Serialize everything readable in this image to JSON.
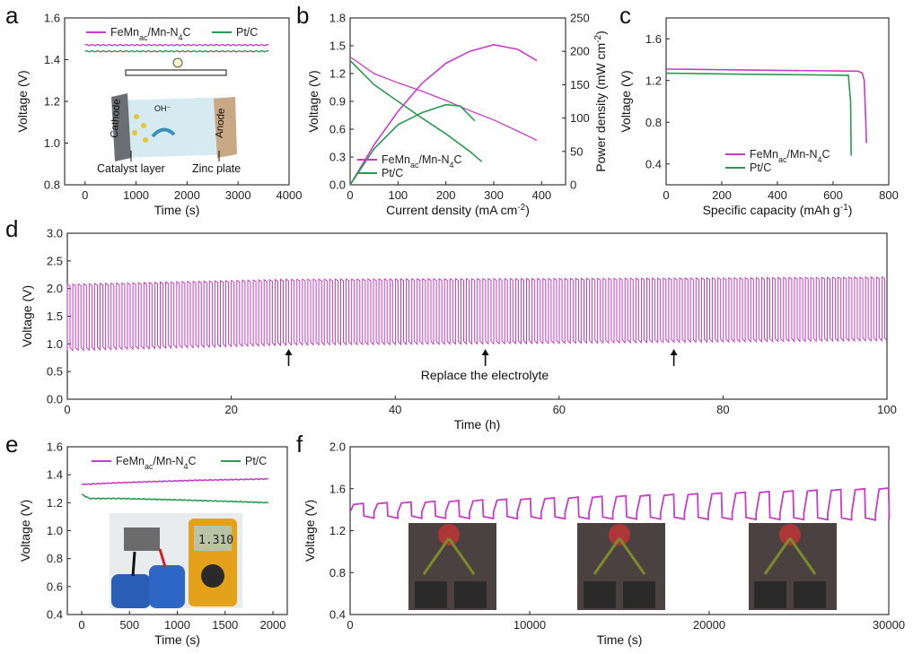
{
  "colors": {
    "fe": "#c83cc8",
    "pt": "#2a9a52",
    "axis": "#222222"
  },
  "panel_letters": [
    "a",
    "b",
    "c",
    "d",
    "e",
    "f"
  ],
  "chart_data": [
    {
      "id": "a",
      "type": "line",
      "title": "",
      "xlabel": "Time (s)",
      "ylabel": "Voltage (V)",
      "xlim": [
        -400,
        4000
      ],
      "ylim": [
        0.8,
        1.6
      ],
      "xticks": [
        0,
        1000,
        2000,
        3000,
        4000
      ],
      "yticks": [
        0.8,
        1.0,
        1.2,
        1.4,
        1.6
      ],
      "legend": [
        "FeMn",
        "ac",
        "/Mn-N",
        "4",
        "C",
        "Pt/C"
      ],
      "series": [
        {
          "name": "FeMnac/Mn-N4C",
          "x": [
            0,
            3600
          ],
          "y": [
            1.47,
            1.47
          ]
        },
        {
          "name": "Pt/C",
          "x": [
            0,
            3600
          ],
          "y": [
            1.44,
            1.44
          ]
        }
      ],
      "inset_labels": [
        "Catalyst layer",
        "Zinc plate",
        "Cathode",
        "Anode",
        "OH⁻"
      ]
    },
    {
      "id": "b",
      "type": "line",
      "xlabel": "Current density (mA cm",
      "xlabel_sup": "-2",
      "xlabel_end": ")",
      "ylabel": "Voltage (V)",
      "y2label": "Power density (mW cm",
      "y2label_sup": "-2",
      "y2label_end": ")",
      "xlim": [
        0,
        450
      ],
      "ylim": [
        0,
        1.8
      ],
      "y2lim": [
        0,
        250
      ],
      "xticks": [
        0,
        100,
        200,
        300,
        400
      ],
      "yticks": [
        0.0,
        0.3,
        0.6,
        0.9,
        1.2,
        1.5,
        1.8
      ],
      "y2ticks": [
        0,
        50,
        100,
        150,
        200,
        250
      ],
      "legend": [
        "FeMn",
        "ac",
        "/Mn-N",
        "4",
        "C",
        "Pt/C"
      ],
      "series": [
        {
          "name": "FeMnac/Mn-N4C voltage",
          "x": [
            0,
            50,
            100,
            150,
            200,
            250,
            300,
            350,
            390
          ],
          "y": [
            1.38,
            1.2,
            1.1,
            1.01,
            0.91,
            0.8,
            0.7,
            0.58,
            0.48
          ]
        },
        {
          "name": "Pt/C voltage",
          "x": [
            0,
            50,
            100,
            150,
            200,
            250,
            275
          ],
          "y": [
            1.34,
            1.08,
            0.9,
            0.72,
            0.55,
            0.36,
            0.25
          ]
        },
        {
          "name": "FeMnac/Mn-N4C power",
          "x": [
            0,
            50,
            100,
            150,
            200,
            250,
            300,
            350,
            390
          ],
          "y": [
            0,
            60,
            110,
            152,
            182,
            200,
            210,
            203,
            186
          ]
        },
        {
          "name": "Pt/C power",
          "x": [
            0,
            50,
            100,
            150,
            200,
            230,
            260
          ],
          "y": [
            0,
            54,
            90,
            108,
            120,
            118,
            96
          ]
        }
      ]
    },
    {
      "id": "c",
      "type": "line",
      "xlabel": "Specific capacity (mAh g",
      "xlabel_sup": "-1",
      "xlabel_end": ")",
      "ylabel": "Voltage (V)",
      "xlim": [
        0,
        800
      ],
      "ylim": [
        0.2,
        1.8
      ],
      "xticks": [
        0,
        200,
        400,
        600,
        800
      ],
      "yticks": [
        0.4,
        0.8,
        1.2,
        1.6
      ],
      "legend": [
        "FeMn",
        "ac",
        "/Mn-N",
        "4",
        "C",
        "Pt/C"
      ],
      "series": [
        {
          "name": "FeMnac/Mn-N4C",
          "x": [
            0,
            300,
            690,
            705,
            712,
            716,
            720
          ],
          "y": [
            1.31,
            1.3,
            1.29,
            1.27,
            1.2,
            0.9,
            0.6
          ]
        },
        {
          "name": "Pt/C",
          "x": [
            0,
            300,
            655,
            663,
            665
          ],
          "y": [
            1.27,
            1.26,
            1.25,
            1.0,
            0.48
          ]
        }
      ]
    },
    {
      "id": "d",
      "type": "line",
      "xlabel": "Time (h)",
      "ylabel": "Voltage (V)",
      "xlim": [
        0,
        100
      ],
      "ylim": [
        0,
        3.0
      ],
      "xticks": [
        0,
        20,
        40,
        60,
        80,
        100
      ],
      "yticks": [
        0.0,
        0.5,
        1.0,
        1.5,
        2.0,
        2.5,
        3.0
      ],
      "annotation": "Replace the electrolyte",
      "annotation_x": [
        27,
        51,
        74
      ],
      "cycle_period_h": 0.667,
      "envelope": {
        "x": [
          0,
          27,
          51,
          74,
          100
        ],
        "charge": [
          2.08,
          2.17,
          2.18,
          2.19,
          2.21
        ],
        "discharge": [
          0.88,
          0.98,
          1.0,
          1.03,
          1.06
        ]
      }
    },
    {
      "id": "e",
      "type": "line",
      "xlabel": "Time (s)",
      "ylabel": "Voltage (V)",
      "xlim": [
        -150,
        2150
      ],
      "ylim": [
        0.4,
        1.6
      ],
      "xticks": [
        0,
        500,
        1000,
        1500,
        2000
      ],
      "yticks": [
        0.4,
        0.6,
        0.8,
        1.0,
        1.2,
        1.4,
        1.6
      ],
      "legend": [
        "FeMn",
        "ac",
        "/Mn-N",
        "4",
        "C",
        "Pt/C"
      ],
      "meter_reading": "1.310",
      "series": [
        {
          "name": "FeMnac/Mn-N4C",
          "x": [
            0,
            300,
            700,
            1200,
            1950
          ],
          "y": [
            1.33,
            1.34,
            1.35,
            1.36,
            1.37
          ]
        },
        {
          "name": "Pt/C",
          "x": [
            0,
            80,
            400,
            1000,
            1500,
            1950
          ],
          "y": [
            1.26,
            1.23,
            1.23,
            1.22,
            1.21,
            1.2
          ]
        }
      ]
    },
    {
      "id": "f",
      "type": "line",
      "xlabel": "Time (s)",
      "ylabel": "Voltage (V)",
      "xlim": [
        0,
        30000
      ],
      "ylim": [
        0.4,
        2.0
      ],
      "xticks": [
        0,
        10000,
        20000,
        30000
      ],
      "yticks": [
        0.4,
        0.8,
        1.2,
        1.6,
        2.0
      ],
      "cycle_period_s": 1330,
      "high": {
        "x": [
          0,
          30000
        ],
        "y": [
          1.45,
          1.6
        ]
      },
      "low": {
        "x": [
          0,
          30000
        ],
        "y": [
          1.32,
          1.3
        ]
      }
    }
  ]
}
